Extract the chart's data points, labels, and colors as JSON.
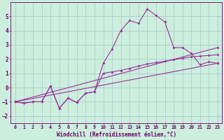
{
  "background_color": "#cceedd",
  "grid_color": "#aacccc",
  "line_color": "#993399",
  "marker_color": "#993399",
  "xlabel": "Windchill (Refroidissement éolien,°C)",
  "xlim": [
    -0.5,
    23.5
  ],
  "ylim": [
    -2.5,
    6.0
  ],
  "yticks": [
    -2,
    -1,
    0,
    1,
    2,
    3,
    4,
    5
  ],
  "xticks": [
    0,
    1,
    2,
    3,
    4,
    5,
    6,
    7,
    8,
    9,
    10,
    11,
    12,
    13,
    14,
    15,
    16,
    17,
    18,
    19,
    20,
    21,
    22,
    23
  ],
  "series1": [
    [
      0,
      -1.0
    ],
    [
      1,
      -1.1
    ],
    [
      2,
      -1.0
    ],
    [
      3,
      -1.0
    ],
    [
      4,
      0.1
    ],
    [
      5,
      -1.45
    ],
    [
      6,
      -0.75
    ],
    [
      7,
      -1.05
    ],
    [
      8,
      -0.4
    ],
    [
      9,
      -0.3
    ],
    [
      10,
      1.7
    ],
    [
      11,
      2.7
    ],
    [
      12,
      4.0
    ],
    [
      13,
      4.7
    ],
    [
      14,
      4.5
    ],
    [
      15,
      5.5
    ],
    [
      16,
      5.05
    ],
    [
      17,
      4.6
    ],
    [
      18,
      2.8
    ],
    [
      19,
      2.8
    ],
    [
      20,
      2.4
    ],
    [
      21,
      1.6
    ],
    [
      22,
      1.8
    ],
    [
      23,
      1.7
    ]
  ],
  "series2": [
    [
      0,
      -1.0
    ],
    [
      1,
      -1.1
    ],
    [
      2,
      -1.0
    ],
    [
      3,
      -1.0
    ],
    [
      4,
      0.1
    ],
    [
      5,
      -1.45
    ],
    [
      6,
      -0.75
    ],
    [
      7,
      -1.05
    ],
    [
      8,
      -0.4
    ],
    [
      9,
      -0.3
    ],
    [
      10,
      1.0
    ],
    [
      11,
      1.1
    ],
    [
      12,
      1.2
    ],
    [
      13,
      1.35
    ],
    [
      14,
      1.5
    ],
    [
      15,
      1.65
    ],
    [
      16,
      1.75
    ],
    [
      17,
      1.85
    ],
    [
      18,
      1.95
    ],
    [
      19,
      2.05
    ],
    [
      20,
      2.15
    ],
    [
      21,
      2.2
    ],
    [
      22,
      2.25
    ],
    [
      23,
      2.3
    ]
  ],
  "series3": [
    [
      0,
      -1.0
    ],
    [
      23,
      1.7
    ]
  ],
  "series4": [
    [
      0,
      -1.0
    ],
    [
      23,
      2.8
    ]
  ]
}
